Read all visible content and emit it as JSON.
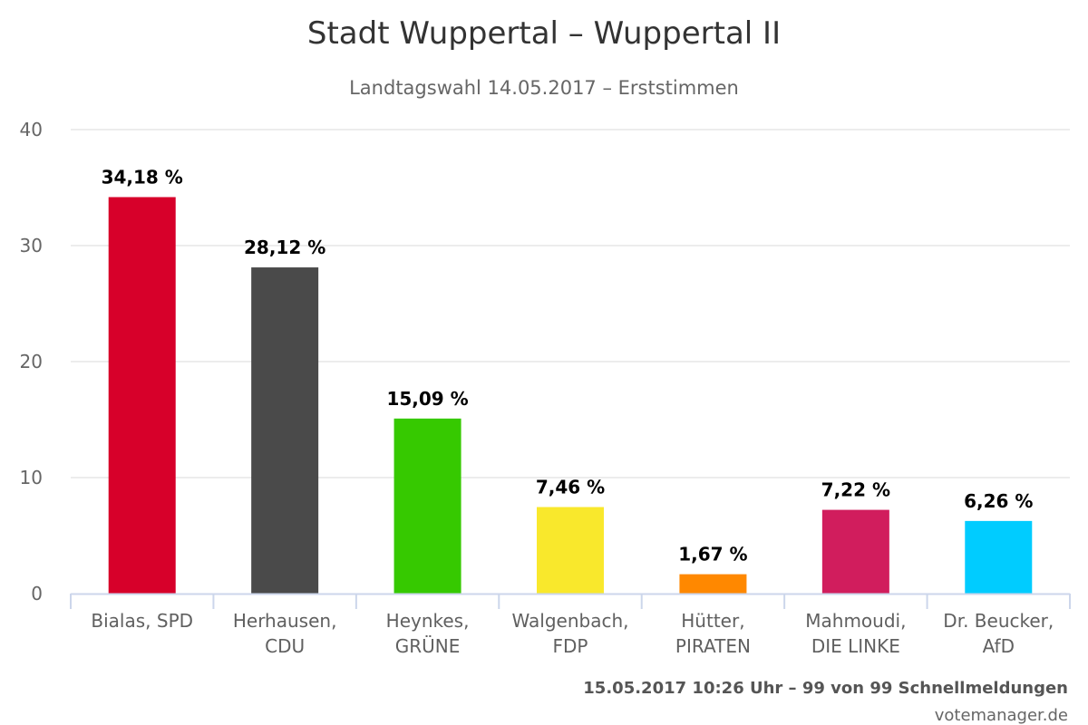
{
  "chart_data": {
    "type": "bar",
    "title": "Stadt Wuppertal – Wuppertal II",
    "subtitle": "Landtagswahl 14.05.2017 – Erststimmen",
    "categories": [
      [
        "Bialas, SPD"
      ],
      [
        "Herhausen,",
        "CDU"
      ],
      [
        "Heynkes,",
        "GRÜNE"
      ],
      [
        "Walgenbach,",
        "FDP"
      ],
      [
        "Hütter,",
        "PIRATEN"
      ],
      [
        "Mahmoudi,",
        "DIE LINKE"
      ],
      [
        "Dr. Beucker,",
        "AfD"
      ]
    ],
    "values": [
      34.18,
      28.12,
      15.09,
      7.46,
      1.67,
      7.22,
      6.26
    ],
    "data_labels": [
      "34,18 %",
      "28,12 %",
      "15,09 %",
      "7,46 %",
      "1,67 %",
      "7,22 %",
      "6,26 %"
    ],
    "colors": [
      "#d7002a",
      "#4a4a4a",
      "#36c900",
      "#f9e82c",
      "#ff8800",
      "#d11d5d",
      "#00ccff"
    ],
    "ylim": [
      0,
      40
    ],
    "yticks": [
      0,
      10,
      20,
      30,
      40
    ],
    "grid": true,
    "legend": "none"
  },
  "footer": {
    "status": "15.05.2017 10:26 Uhr – 99 von 99 Schnellmeldungen",
    "credit": "votemanager.de"
  }
}
